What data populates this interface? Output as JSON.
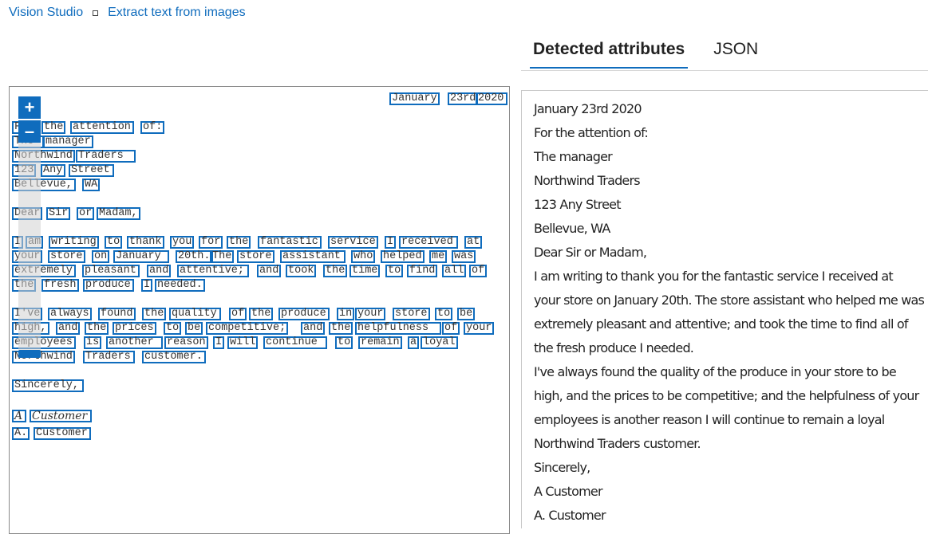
{
  "breadcrumb": {
    "root": "Vision Studio",
    "current": "Extract text from images"
  },
  "tabs": [
    {
      "label": "Detected attributes",
      "active": true
    },
    {
      "label": "JSON",
      "active": false
    }
  ],
  "zoom": {
    "in_label": "+",
    "out_label": "–",
    "level": 0.0
  },
  "colors": {
    "accent": "#0f6cbd"
  },
  "document_words": [
    "January",
    "23rd",
    "2020",
    "For",
    "the",
    "attention",
    "of:",
    "The",
    "manager",
    "Northwind",
    "Traders",
    "123",
    "Any",
    "Street",
    "Bellevue,",
    "WA",
    "Dear",
    "Sir",
    "or",
    "Madam,",
    "I",
    "am",
    "writing",
    "to",
    "thank",
    "you",
    "for",
    "the",
    "fantastic",
    "service",
    "I",
    "received",
    "at",
    "your",
    "store",
    "on",
    "January",
    "20th.",
    "The",
    "store",
    "assistant",
    "who",
    "helped",
    "me",
    "was",
    "extremely",
    "pleasant",
    "and",
    "attentive;",
    "and",
    "took",
    "the",
    "time",
    "to",
    "find",
    "all",
    "of",
    "the",
    "fresh",
    "produce",
    "I",
    "needed.",
    "I've",
    "always",
    "found",
    "the",
    "quality",
    "of",
    "the",
    "produce",
    "in",
    "your",
    "store",
    "to",
    "be",
    "high,",
    "and",
    "the",
    "prices",
    "to",
    "be",
    "competitive;",
    "and",
    "the",
    "helpfulness",
    "of",
    "your",
    "employees",
    "is",
    "another",
    "reason",
    "I",
    "will",
    "continue",
    "to",
    "remain",
    "a",
    "loyal",
    "Northwind",
    "Traders",
    "customer.",
    "Sincerely,",
    "A",
    "Customer",
    "A.",
    "Customer"
  ],
  "detected_lines": [
    "January 23rd 2020",
    "For the attention of:",
    "The manager",
    "Northwind Traders",
    "123 Any Street",
    "Bellevue, WA",
    "Dear Sir or Madam,",
    "I am writing to thank you for the fantastic service I received at",
    "your store on January 20th. The store assistant who helped me was",
    "extremely pleasant and attentive; and took the time to find all of",
    "the fresh produce I needed.",
    "I've always found the quality of the produce in your store to be",
    "high, and the prices to be competitive; and the helpfulness of your",
    "employees is another reason I will continue to remain a loyal",
    "Northwind Traders customer.",
    "Sincerely,",
    "A Customer",
    "A. Customer"
  ]
}
